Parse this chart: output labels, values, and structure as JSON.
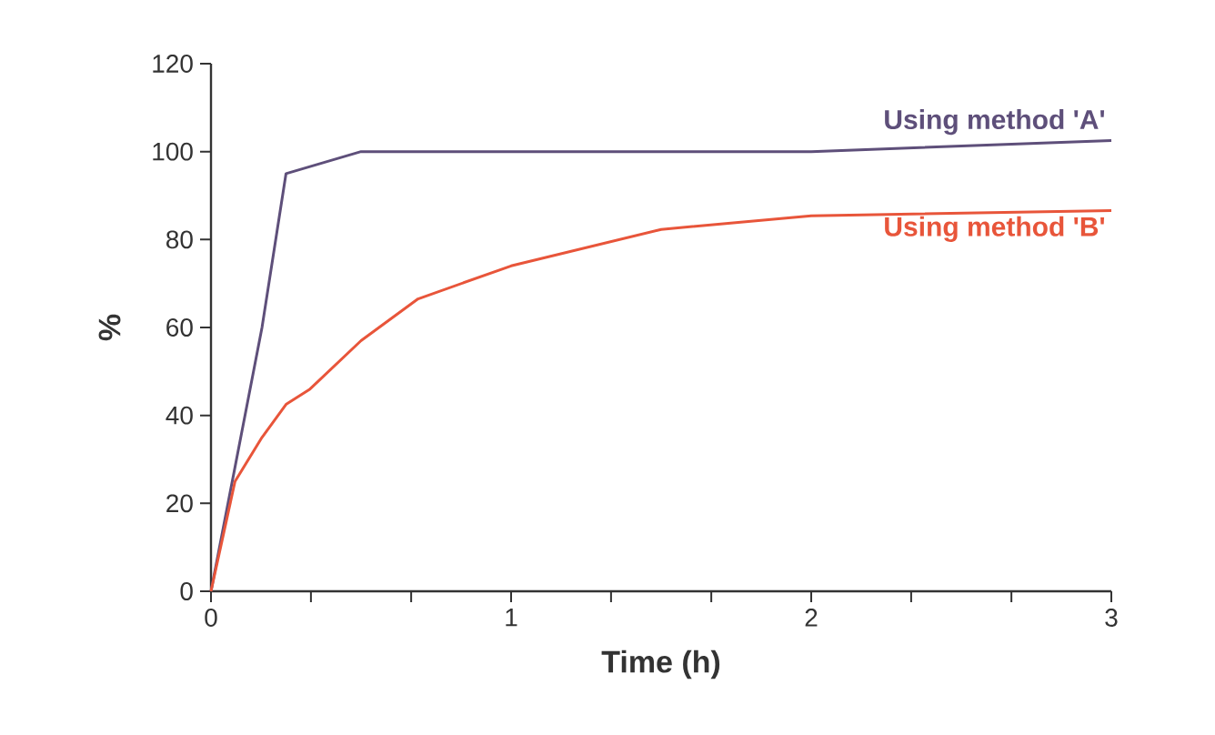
{
  "chart_data": {
    "type": "line",
    "xlabel": "Time (h)",
    "ylabel": "%",
    "xlim": [
      0,
      3
    ],
    "ylim": [
      0,
      120
    ],
    "xticks": [
      0,
      {
        "value": 0.333,
        "label": null
      },
      {
        "value": 0.667,
        "label": null
      },
      1,
      {
        "value": 1.333,
        "label": null
      },
      {
        "value": 1.667,
        "label": null
      },
      2,
      {
        "value": 2.333,
        "label": null
      },
      {
        "value": 2.667,
        "label": null
      },
      3
    ],
    "yticks": [
      0,
      20,
      40,
      60,
      80,
      100,
      120
    ],
    "grid": false,
    "legend": false,
    "marker": "none",
    "line_style": "solid",
    "series": [
      {
        "name": "Using method 'A'",
        "color": "#5e4f7a",
        "x": [
          0,
          0.17,
          0.25,
          0.5,
          2,
          3
        ],
        "values": [
          0,
          60,
          95,
          100,
          100,
          102.5
        ]
      },
      {
        "name": "Using method 'B'",
        "color": "#e8553a",
        "x": [
          0,
          0.08,
          0.17,
          0.25,
          0.33,
          0.5,
          0.69,
          1,
          1.5,
          2,
          3
        ],
        "values": [
          0,
          25,
          35,
          42.5,
          46,
          57,
          66.5,
          74,
          82.3,
          85.4,
          86.6
        ]
      }
    ]
  }
}
